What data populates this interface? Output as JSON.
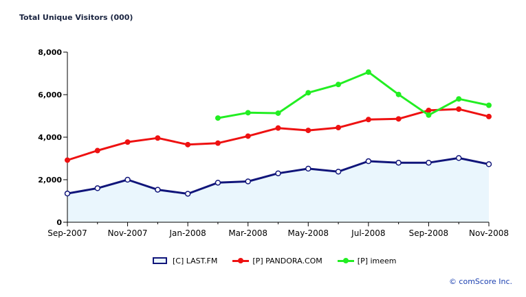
{
  "chart_data": {
    "type": "line",
    "title": "Total Unique Visitors (000)",
    "ylim": [
      0,
      8000
    ],
    "yticks": [
      "0",
      "2,000",
      "4,000",
      "6,000",
      "8,000"
    ],
    "x_labels": [
      "Sep-2007",
      "Nov-2007",
      "Jan-2008",
      "Mar-2008",
      "May-2008",
      "Jul-2008",
      "Sep-2008",
      "Nov-2008"
    ],
    "categories": [
      "Sep-2007",
      "Oct-2007",
      "Nov-2007",
      "Dec-2007",
      "Jan-2008",
      "Feb-2008",
      "Mar-2008",
      "Apr-2008",
      "May-2008",
      "Jun-2008",
      "Jul-2008",
      "Aug-2008",
      "Sep-2008",
      "Oct-2008",
      "Nov-2008"
    ],
    "series": [
      {
        "name": "[C] LAST.FM",
        "style": "area",
        "color": "#10157a",
        "fill": "#eaf6fd",
        "values": [
          1350,
          1600,
          2000,
          1530,
          1340,
          1860,
          1920,
          2300,
          2520,
          2380,
          2870,
          2800,
          2800,
          3020,
          2730
        ]
      },
      {
        "name": "[P] PANDORA.COM",
        "style": "line",
        "color": "#ee1111",
        "values": [
          2920,
          3370,
          3770,
          3960,
          3650,
          3720,
          4050,
          4430,
          4320,
          4450,
          4830,
          4860,
          5260,
          5320,
          4970
        ]
      },
      {
        "name": "[P] imeem",
        "style": "line",
        "color": "#22ee22",
        "values": [
          null,
          null,
          null,
          null,
          null,
          4900,
          5150,
          5130,
          6090,
          6480,
          7060,
          6010,
          5040,
          5800,
          5500
        ]
      }
    ]
  },
  "copyright": "© comScore Inc."
}
